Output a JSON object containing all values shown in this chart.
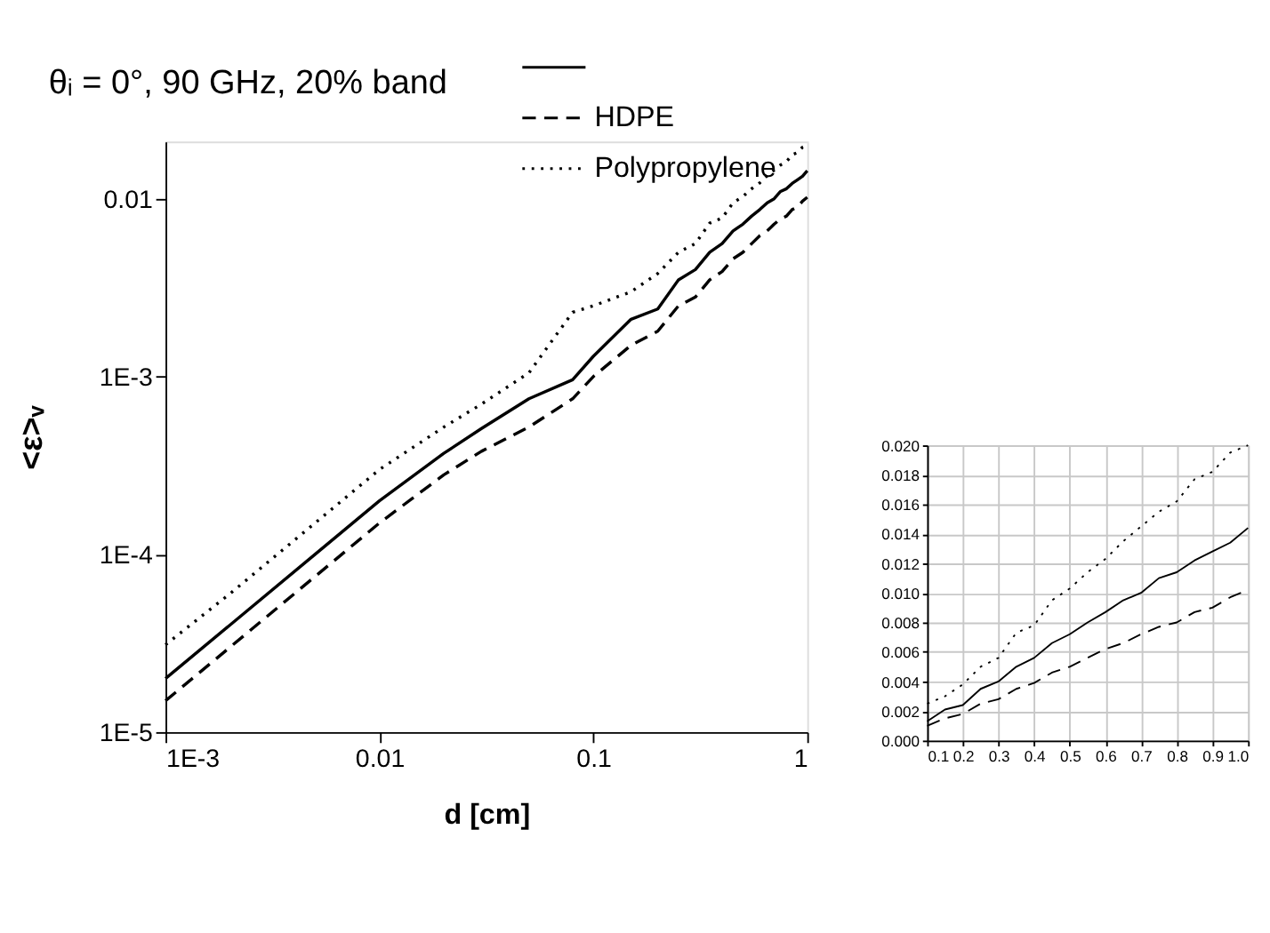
{
  "chart_data": [
    {
      "type": "line",
      "title": "θᵢ = 0°, 90 GHz, 20% band",
      "xlabel": "d [cm]",
      "ylabel": "<ε>ᵥ",
      "log": "xy",
      "grid": false,
      "legend": "top right",
      "x": [
        0.001,
        0.002,
        0.005,
        0.01,
        0.02,
        0.03,
        0.05,
        0.08,
        0.1,
        0.15,
        0.2,
        0.25,
        0.3,
        0.35,
        0.4,
        0.45,
        0.5,
        0.55,
        0.6,
        0.65,
        0.7,
        0.75,
        0.8,
        0.85,
        0.9,
        0.95,
        1.0
      ],
      "xlim": [
        0.001,
        1
      ],
      "xticks": [
        {
          "value": 0.001,
          "label": "1E-3"
        },
        0.01,
        0.1,
        1
      ],
      "ylim": [
        1e-05,
        0.021
      ],
      "yticks": [
        {
          "value": 1e-05,
          "label": "1E-5"
        },
        {
          "value": 0.0001,
          "label": "1E-4"
        },
        {
          "value": 0.001,
          "label": "1E-3"
        },
        0.01
      ],
      "series": [
        {
          "color": "#000000",
          "line_style": "solid",
          "values": [
            2e-05,
            4e-05,
            0.0001,
            0.0002,
            0.00037,
            0.00051,
            0.00075,
            0.00096,
            0.0013,
            0.0021,
            0.0024,
            0.0035,
            0.004,
            0.005,
            0.0056,
            0.0066,
            0.0072,
            0.008,
            0.0087,
            0.0095,
            0.01,
            0.011,
            0.0114,
            0.0122,
            0.0128,
            0.0134,
            0.0144
          ]
        },
        {
          "name": "HDPE",
          "color": "#000000",
          "line_style": "dashed",
          "values": [
            1.5e-05,
            3e-05,
            7.5e-05,
            0.00015,
            0.00028,
            0.00038,
            0.00052,
            0.00075,
            0.001,
            0.0015,
            0.0018,
            0.0025,
            0.0028,
            0.0035,
            0.0039,
            0.0046,
            0.005,
            0.0056,
            0.0062,
            0.0066,
            0.0072,
            0.0077,
            0.008,
            0.0087,
            0.009,
            0.0097,
            0.0102
          ]
        },
        {
          "name": "Polypropylene",
          "color": "#000000",
          "line_style": "dotted",
          "values": [
            3.1e-05,
            6e-05,
            0.00015,
            0.0003,
            0.00052,
            0.0007,
            0.00105,
            0.0023,
            0.0025,
            0.003,
            0.0038,
            0.005,
            0.0056,
            0.0073,
            0.0078,
            0.0095,
            0.0103,
            0.0114,
            0.0123,
            0.0135,
            0.0145,
            0.0155,
            0.0162,
            0.0177,
            0.0182,
            0.0195,
            0.02
          ]
        }
      ]
    },
    {
      "type": "line",
      "grid": true,
      "x": [
        0.1,
        0.15,
        0.2,
        0.25,
        0.3,
        0.35,
        0.4,
        0.45,
        0.5,
        0.55,
        0.6,
        0.65,
        0.7,
        0.75,
        0.8,
        0.85,
        0.9,
        0.95,
        1.0
      ],
      "xlim": [
        0.1,
        1.0
      ],
      "xticks": [
        0.1,
        0.2,
        0.3,
        0.4,
        0.5,
        0.6,
        0.7,
        0.8,
        0.9,
        {
          "value": 1.0,
          "label": "1.0"
        }
      ],
      "ylim": [
        0,
        0.02
      ],
      "yticks": [
        {
          "value": 0,
          "label": "0.000"
        },
        {
          "value": 0.002,
          "label": "0.002"
        },
        {
          "value": 0.004,
          "label": "0.004"
        },
        {
          "value": 0.006,
          "label": "0.006"
        },
        {
          "value": 0.008,
          "label": "0.008"
        },
        {
          "value": 0.01,
          "label": "0.010"
        },
        {
          "value": 0.012,
          "label": "0.012"
        },
        {
          "value": 0.014,
          "label": "0.014"
        },
        {
          "value": 0.016,
          "label": "0.016"
        },
        {
          "value": 0.018,
          "label": "0.018"
        },
        {
          "value": 0.02,
          "label": "0.020"
        }
      ],
      "series": [
        {
          "color": "#000000",
          "line_style": "solid",
          "values": [
            0.0013,
            0.0021,
            0.0024,
            0.0035,
            0.004,
            0.005,
            0.0056,
            0.0066,
            0.0072,
            0.008,
            0.0087,
            0.0095,
            0.01,
            0.011,
            0.0114,
            0.0122,
            0.0128,
            0.0134,
            0.0144
          ]
        },
        {
          "color": "#000000",
          "line_style": "dashed",
          "values": [
            0.001,
            0.0015,
            0.0018,
            0.0025,
            0.0028,
            0.0035,
            0.0039,
            0.0046,
            0.005,
            0.0056,
            0.0062,
            0.0066,
            0.0072,
            0.0077,
            0.008,
            0.0087,
            0.009,
            0.0097,
            0.0102
          ]
        },
        {
          "color": "#000000",
          "line_style": "dotted",
          "values": [
            0.0025,
            0.003,
            0.0038,
            0.005,
            0.0056,
            0.0073,
            0.0078,
            0.0095,
            0.0103,
            0.0114,
            0.0123,
            0.0135,
            0.0145,
            0.0155,
            0.0162,
            0.0177,
            0.0182,
            0.0195,
            0.02
          ]
        }
      ]
    }
  ]
}
